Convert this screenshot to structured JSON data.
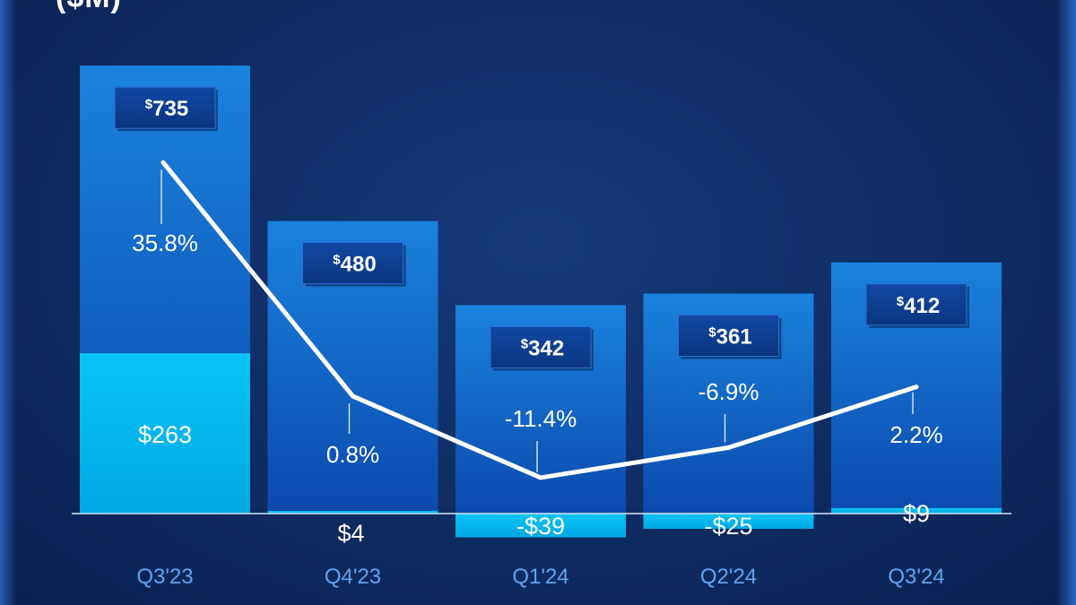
{
  "header": {
    "title": "($M)"
  },
  "colors": {
    "background": "#0f2c62",
    "bar_top": "#1a7fd8",
    "bar_bottom": "#0b4bb0",
    "sub_bar": "#00b8f0",
    "line": "#ffffff",
    "label_box": "#0d3a8c",
    "category_text": "#5ea4f0"
  },
  "chart_data": {
    "type": "bar",
    "categories": [
      "Q3'23",
      "Q4'23",
      "Q1'24",
      "Q2'24",
      "Q3'24"
    ],
    "series": [
      {
        "values": [
          735,
          480,
          342,
          361,
          412
        ],
        "labels": [
          "735",
          "480",
          "342",
          "361",
          "412"
        ],
        "currency_symbol": "$"
      },
      {
        "values": [
          263,
          4,
          -39,
          -25,
          9
        ],
        "labels": [
          "$263",
          "$4",
          "-$39",
          "-$25",
          "$9"
        ]
      },
      {
        "type": "line",
        "values": [
          35.8,
          0.8,
          -11.4,
          -6.9,
          2.2
        ],
        "labels": [
          "35.8%",
          "0.8%",
          "-11.4%",
          "-6.9%",
          "2.2%"
        ]
      }
    ],
    "ylim": [
      -50,
      750
    ],
    "grid": false,
    "legend": "none"
  }
}
